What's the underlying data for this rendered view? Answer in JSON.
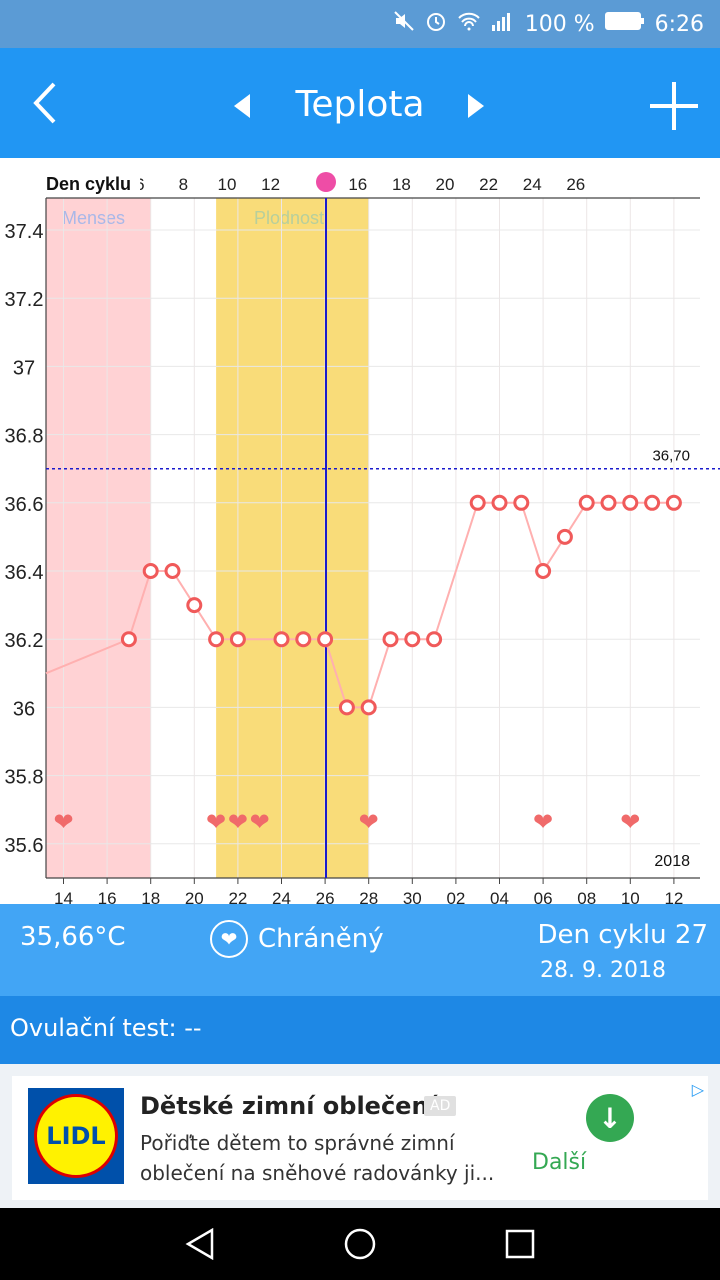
{
  "status_bar": {
    "battery": "100 %",
    "time": "6:26"
  },
  "app_bar": {
    "title": "Teplota"
  },
  "chart_data": {
    "type": "line",
    "x_header": "Den cyklu",
    "cycle_ticks": [
      "6",
      "8",
      "10",
      "12",
      "16",
      "18",
      "20",
      "22",
      "24",
      "26"
    ],
    "date_ticks": [
      "14",
      "16",
      "18",
      "20",
      "22",
      "24",
      "26",
      "28",
      "30",
      "02",
      "04",
      "06",
      "08",
      "10",
      "12"
    ],
    "year_label": "2018",
    "yticks": [
      "37.4",
      "37.2",
      "37",
      "36.8",
      "36.6",
      "36.4",
      "36.2",
      "36",
      "35.8",
      "35.6"
    ],
    "ylim": [
      35.5,
      37.5
    ],
    "bands": [
      {
        "label": "Menses"
      },
      {
        "label": "Plodnost"
      }
    ],
    "threshold": {
      "value": 36.7,
      "label": "36,70"
    },
    "points": [
      {
        "x": "2018-08-17",
        "y": 36.2
      },
      {
        "x": "2018-08-18",
        "y": 36.4
      },
      {
        "x": "2018-08-19",
        "y": 36.4
      },
      {
        "x": "2018-08-20",
        "y": 36.3
      },
      {
        "x": "2018-08-21",
        "y": 36.2
      },
      {
        "x": "2018-08-22",
        "y": 36.2
      },
      {
        "x": "2018-08-24",
        "y": 36.2
      },
      {
        "x": "2018-08-25",
        "y": 36.2
      },
      {
        "x": "2018-08-26",
        "y": 36.2
      },
      {
        "x": "2018-08-27",
        "y": 36.0
      },
      {
        "x": "2018-08-28",
        "y": 36.0
      },
      {
        "x": "2018-08-29",
        "y": 36.2
      },
      {
        "x": "2018-08-30",
        "y": 36.2
      },
      {
        "x": "2018-08-31",
        "y": 36.2
      },
      {
        "x": "2018-09-02",
        "y": 36.6
      },
      {
        "x": "2018-09-03",
        "y": 36.6
      },
      {
        "x": "2018-09-04",
        "y": 36.6
      },
      {
        "x": "2018-09-05",
        "y": 36.4
      },
      {
        "x": "2018-09-06",
        "y": 36.5
      },
      {
        "x": "2018-09-07",
        "y": 36.6
      },
      {
        "x": "2018-09-08",
        "y": 36.6
      },
      {
        "x": "2018-09-09",
        "y": 36.6
      },
      {
        "x": "2018-09-10",
        "y": 36.6
      },
      {
        "x": "2018-09-11",
        "y": 36.6
      }
    ],
    "hearts": [
      "2018-08-14",
      "2018-08-21",
      "2018-08-22",
      "2018-08-23",
      "2018-08-28",
      "2018-09-05",
      "2018-09-09"
    ],
    "colors": {
      "menses": "#ffd2d4",
      "fertile": "#f9dc79",
      "line": "#ffb0b0",
      "marker": "#f05a5a",
      "threshold": "#1a1acc",
      "today": "#1a1acc"
    }
  },
  "info": {
    "temp": "35,66°C",
    "protection": "Chráněný",
    "cycle": "Den cyklu 27",
    "date": "28. 9. 2018"
  },
  "ovulation": {
    "label": "Ovulační test: --"
  },
  "ad": {
    "logo_text": "LIDL",
    "headline": "Dětské zimní oblečení",
    "badge": "AD",
    "body": "Pořiďte dětem to správné zimní oblečení na sněhové radovánky ji...",
    "cta": "Další"
  }
}
